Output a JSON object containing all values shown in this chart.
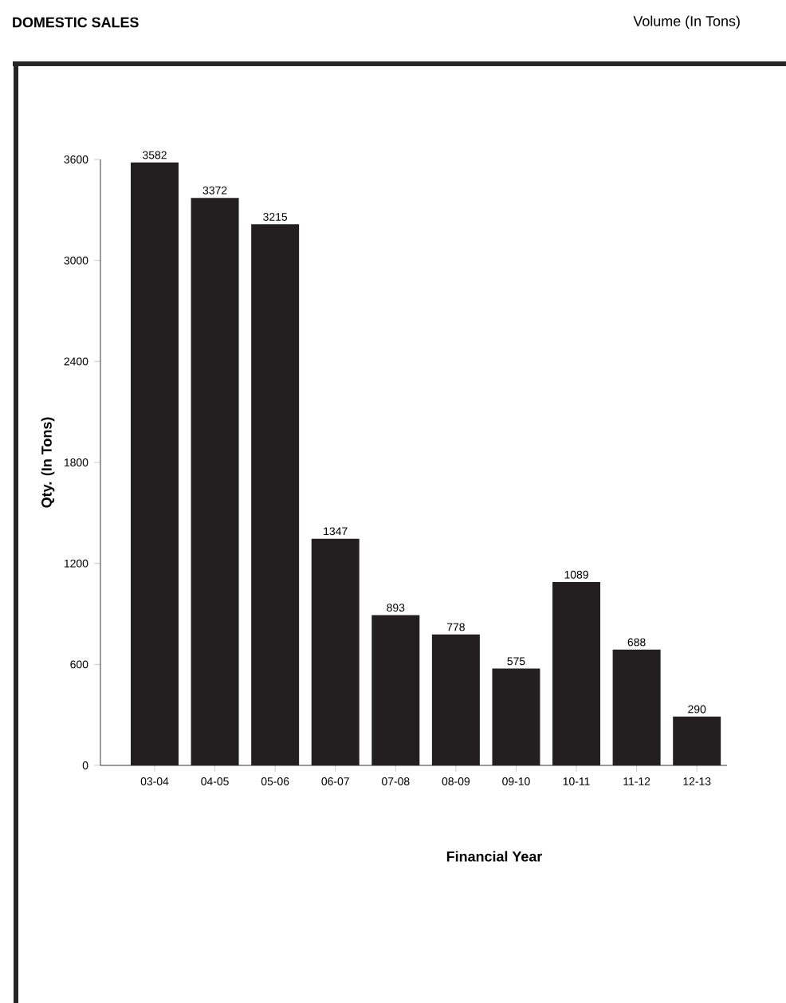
{
  "chart_data": {
    "type": "bar",
    "title": "DOMESTIC SALES",
    "subtitle": "Volume (In Tons)",
    "xlabel": "Financial Year",
    "ylabel": "Qty. (In Tons)",
    "categories": [
      "03-04",
      "04-05",
      "05-06",
      "06-07",
      "07-08",
      "08-09",
      "09-10",
      "10-11",
      "11-12",
      "12-13"
    ],
    "values": [
      3582,
      3372,
      3215,
      1347,
      893,
      778,
      575,
      1089,
      688,
      290
    ],
    "color": "#231f20",
    "ylim": [
      0,
      3600
    ],
    "yticks": [
      0,
      600,
      1200,
      1800,
      2400,
      3000,
      3600
    ],
    "data_labels": true
  }
}
